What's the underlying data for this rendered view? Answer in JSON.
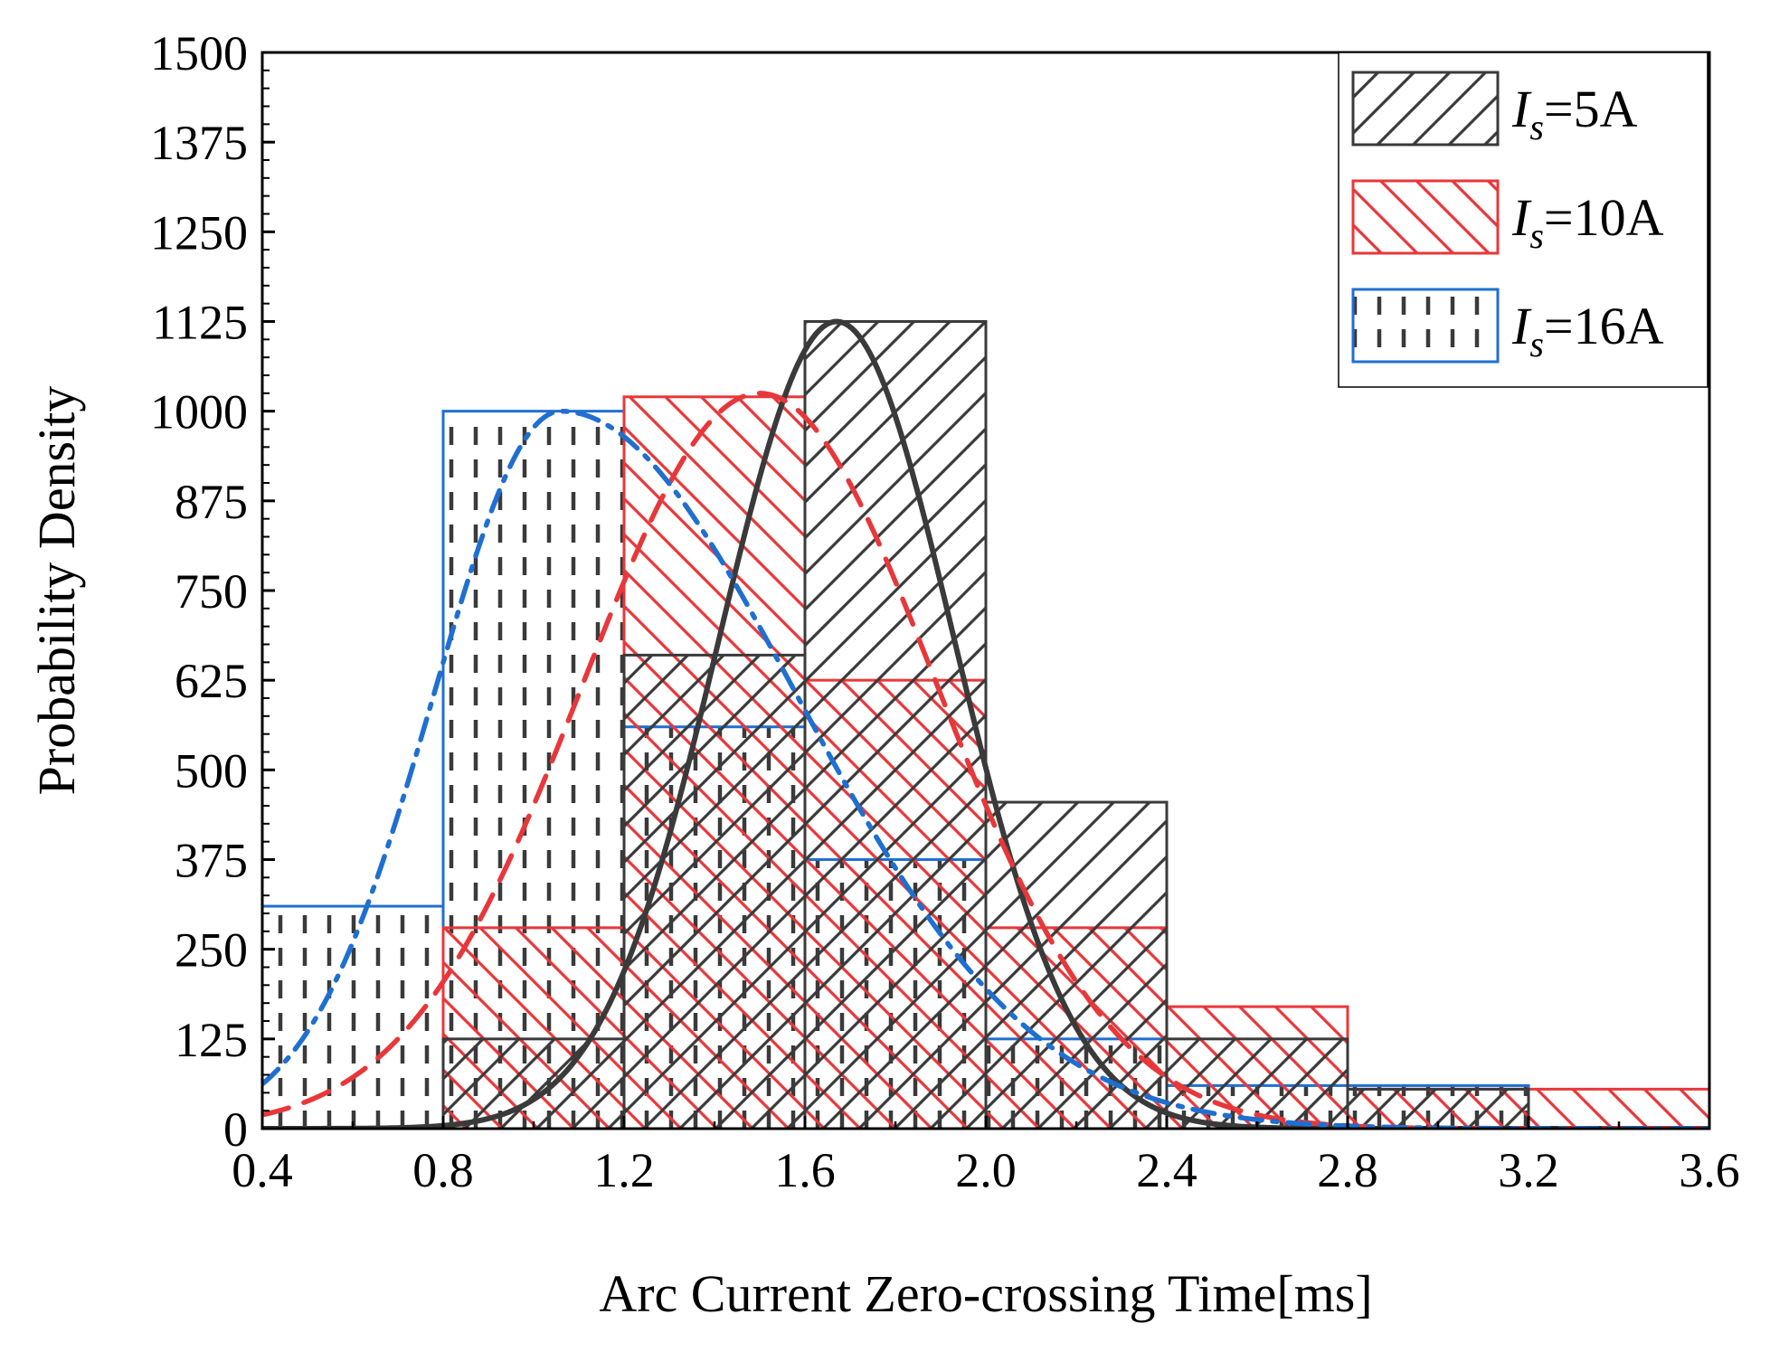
{
  "chart_data": {
    "type": "bar",
    "subtype": "histogram-with-fitted-curves",
    "title": "",
    "xlabel": "Arc Current Zero-crossing Time[ms]",
    "ylabel": "Probability Density",
    "xlim": [
      0.4,
      3.6
    ],
    "ylim": [
      0,
      1500
    ],
    "xticks": [
      "0.4",
      "0.8",
      "1.2",
      "1.6",
      "2.0",
      "2.4",
      "2.8",
      "3.2",
      "3.6"
    ],
    "yticks": [
      "0",
      "125",
      "250",
      "375",
      "500",
      "625",
      "750",
      "875",
      "1000",
      "1125",
      "1250",
      "1375",
      "1500"
    ],
    "grid": false,
    "legend_position": "top-right",
    "series": [
      {
        "name": "Is=5A",
        "label_main": "I",
        "label_sub": "s",
        "label_rest": "=5A",
        "color": "#3a3a3a",
        "hatch": "forward-diagonal",
        "curve_style": "solid",
        "bins": [
          {
            "x0": 0.8,
            "x1": 1.2,
            "value": 125
          },
          {
            "x0": 1.2,
            "x1": 1.6,
            "value": 660
          },
          {
            "x0": 1.6,
            "x1": 2.0,
            "value": 1125
          },
          {
            "x0": 2.0,
            "x1": 2.4,
            "value": 455
          },
          {
            "x0": 2.4,
            "x1": 2.8,
            "value": 125
          },
          {
            "x0": 2.8,
            "x1": 3.2,
            "value": 55
          }
        ],
        "fit": {
          "mu": 1.67,
          "sigma": 0.26,
          "peak": 1125
        }
      },
      {
        "name": "Is=10A",
        "label_main": "I",
        "label_sub": "s",
        "label_rest": "=10A",
        "color": "#e8373a",
        "hatch": "back-diagonal",
        "curve_style": "dashed",
        "bins": [
          {
            "x0": 0.8,
            "x1": 1.2,
            "value": 280
          },
          {
            "x0": 1.2,
            "x1": 1.6,
            "value": 1020
          },
          {
            "x0": 1.6,
            "x1": 2.0,
            "value": 625
          },
          {
            "x0": 2.0,
            "x1": 2.4,
            "value": 280
          },
          {
            "x0": 2.4,
            "x1": 2.8,
            "value": 170
          },
          {
            "x0": 2.8,
            "x1": 3.2,
            "value": 55
          },
          {
            "x0": 3.2,
            "x1": 3.6,
            "value": 55
          }
        ],
        "fit": {
          "mu": 1.5,
          "sigma": 0.39,
          "peak": 1025
        }
      },
      {
        "name": "Is=16A",
        "label_main": "I",
        "label_sub": "s",
        "label_rest": "=16A",
        "color": "#1f6fd1",
        "hatch": "vertical-dashes",
        "curve_style": "dash-dot",
        "bins": [
          {
            "x0": 0.4,
            "x1": 0.8,
            "value": 310
          },
          {
            "x0": 0.8,
            "x1": 1.2,
            "value": 1000
          },
          {
            "x0": 1.2,
            "x1": 1.6,
            "value": 560
          },
          {
            "x0": 1.6,
            "x1": 2.0,
            "value": 375
          },
          {
            "x0": 2.0,
            "x1": 2.4,
            "value": 125
          },
          {
            "x0": 2.4,
            "x1": 2.8,
            "value": 60
          },
          {
            "x0": 2.8,
            "x1": 3.2,
            "value": 60
          }
        ],
        "fit": {
          "mu": 1.06,
          "sigma": 0.28,
          "peak": 1000,
          "right_tail": 0.52
        }
      }
    ]
  }
}
